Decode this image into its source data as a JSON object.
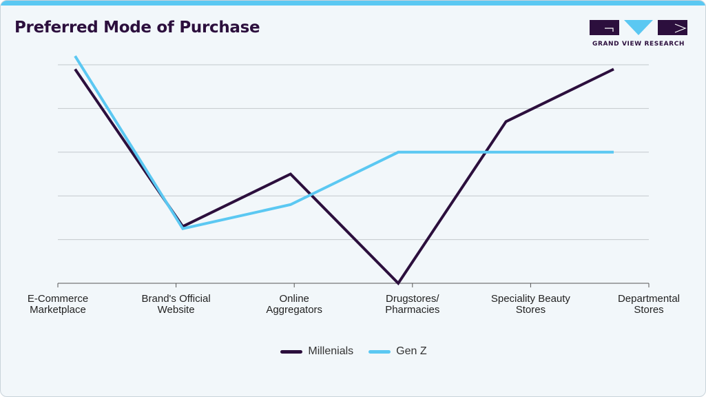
{
  "brand": {
    "name": "GRAND VIEW RESEARCH",
    "colors": {
      "primary": "#2c0f3d",
      "accent": "#5bc8f2"
    }
  },
  "chart_data": {
    "type": "line",
    "title": "Preferred Mode of Purchase",
    "xlabel": "",
    "ylabel": "",
    "grid": true,
    "ylim": [
      0,
      5
    ],
    "categories": [
      "E-Commerce\nMarketplace",
      "Brand's Official\nWebsite",
      "Online\nAggregators",
      "Drugstores/\nPharmacies",
      "Speciality Beauty\nStores",
      "Departmental\nStores"
    ],
    "series": [
      {
        "name": "Millenials",
        "color": "#2c0f3d",
        "values": [
          4.9,
          1.3,
          2.5,
          0.0,
          3.7,
          4.9
        ]
      },
      {
        "name": "Gen Z",
        "color": "#5bc8f2",
        "values": [
          5.2,
          1.25,
          1.8,
          3.0,
          3.0,
          3.0
        ]
      }
    ],
    "legend": "bottom-center"
  }
}
